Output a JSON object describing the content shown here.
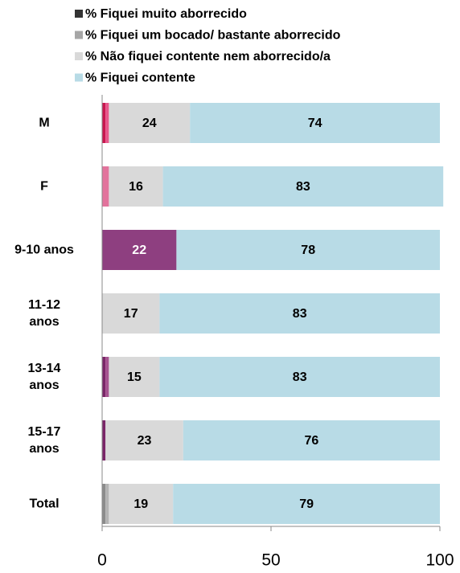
{
  "chart_data": {
    "type": "stacked_barh",
    "categories": [
      "M",
      "F",
      "9-10 anos",
      "11-12\nanos",
      "13-14\nanos",
      "15-17\nanos",
      "Total"
    ],
    "series": [
      {
        "name": "% Fiquei muito aborrecido",
        "color": "#333333",
        "values": [
          1,
          0,
          0,
          0,
          1,
          1,
          1
        ],
        "point_colors": [
          "#c8174f",
          "#c8174f",
          "#7a2668",
          "#7a2668",
          "#7a2668",
          "#7a2668",
          "#8c8c8c"
        ],
        "show_labels": false
      },
      {
        "name": "% Fiquei um bocado/ bastante aborrecido",
        "color": "#a6a6a6",
        "values": [
          1,
          2,
          0,
          0,
          1,
          0,
          1
        ],
        "point_colors": [
          "#e8558a",
          "#e2739c",
          "#a5528f",
          "#a5528f",
          "#a5528f",
          "#a5528f",
          "#b3b3b3"
        ],
        "show_labels": false
      },
      {
        "name": "% Não fiquei contente nem aborrecido/a",
        "color": "#d9d9d9",
        "values": [
          24,
          16,
          22,
          17,
          15,
          23,
          19
        ],
        "point_colors": [
          "#d9d9d9",
          "#d9d9d9",
          "#8e3f80",
          "#d9d9d9",
          "#d9d9d9",
          "#d9d9d9",
          "#d9d9d9"
        ],
        "show_labels": true
      },
      {
        "name": "% Fiquei contente",
        "color": "#b8dbe6",
        "values": [
          74,
          83,
          78,
          83,
          83,
          76,
          79
        ],
        "show_labels": true
      }
    ],
    "xlim": [
      0,
      100
    ],
    "xticks": [
      0,
      50,
      100
    ],
    "legend": "top"
  }
}
